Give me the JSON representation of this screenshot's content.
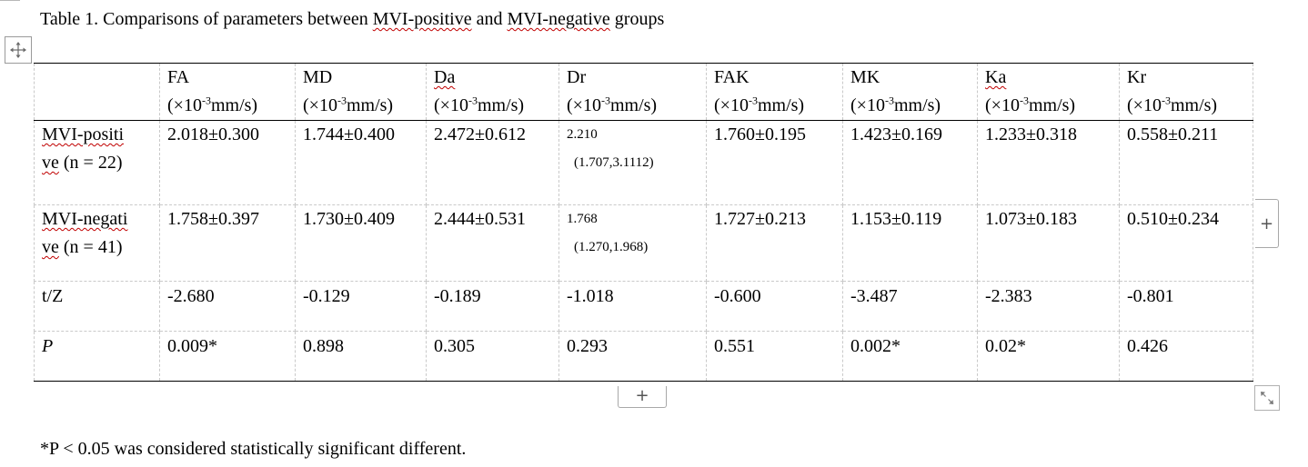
{
  "caption": {
    "prefix": "Table 1. Comparisons of parameters between ",
    "mvi_positive": "MVI-positive",
    "and": " and ",
    "mvi_negative": "MVI-negative",
    "suffix": " groups"
  },
  "table": {
    "unit": {
      "open": "(×10",
      "exp": "-3",
      "close": "mm/s)"
    },
    "columns": [
      {
        "name": "FA"
      },
      {
        "name": "MD"
      },
      {
        "name": "Da"
      },
      {
        "name": "Dr"
      },
      {
        "name": "FAK"
      },
      {
        "name": "MK"
      },
      {
        "name": "Ka"
      },
      {
        "name": "Kr"
      }
    ],
    "rows": {
      "positive": {
        "label_line1": "MVI-positi",
        "label_line2": "ve",
        "label_n": " (n = 22)",
        "values": [
          "2.018±0.300",
          "1.744±0.400",
          "2.472±0.612",
          "",
          "1.760±0.195",
          "1.423±0.169",
          "1.233±0.318",
          "0.558±0.211"
        ],
        "dr_median": "2.210",
        "dr_range": "(1.707,3.1112)"
      },
      "negative": {
        "label_line1": "MVI-negati",
        "label_line2": "ve",
        "label_n": " (n = 41)",
        "values": [
          "1.758±0.397",
          "1.730±0.409",
          "2.444±0.531",
          "",
          "1.727±0.213",
          "1.153±0.119",
          "1.073±0.183",
          "0.510±0.234"
        ],
        "dr_median": "1.768",
        "dr_range": "(1.270,1.968)"
      },
      "tz": {
        "label": "t/Z",
        "values": [
          "-2.680",
          "-0.129",
          "-0.189",
          "-1.018",
          "-0.600",
          "-3.487",
          "-2.383",
          "-0.801"
        ]
      },
      "p": {
        "label": "P",
        "values": [
          "0.009*",
          "0.898",
          "0.305",
          "0.293",
          "0.551",
          "0.002*",
          "0.02*",
          "0.426"
        ]
      }
    }
  },
  "controls": {
    "add_column": "+",
    "add_row": "+"
  },
  "footnote": "*P < 0.05 was considered statistically significant different.",
  "icons": {
    "move": "move-arrows-icon",
    "resize": "resize-diagonal-icon"
  },
  "colors": {
    "spell_underline": "#c00000",
    "gridline": "#c9c9c9"
  }
}
